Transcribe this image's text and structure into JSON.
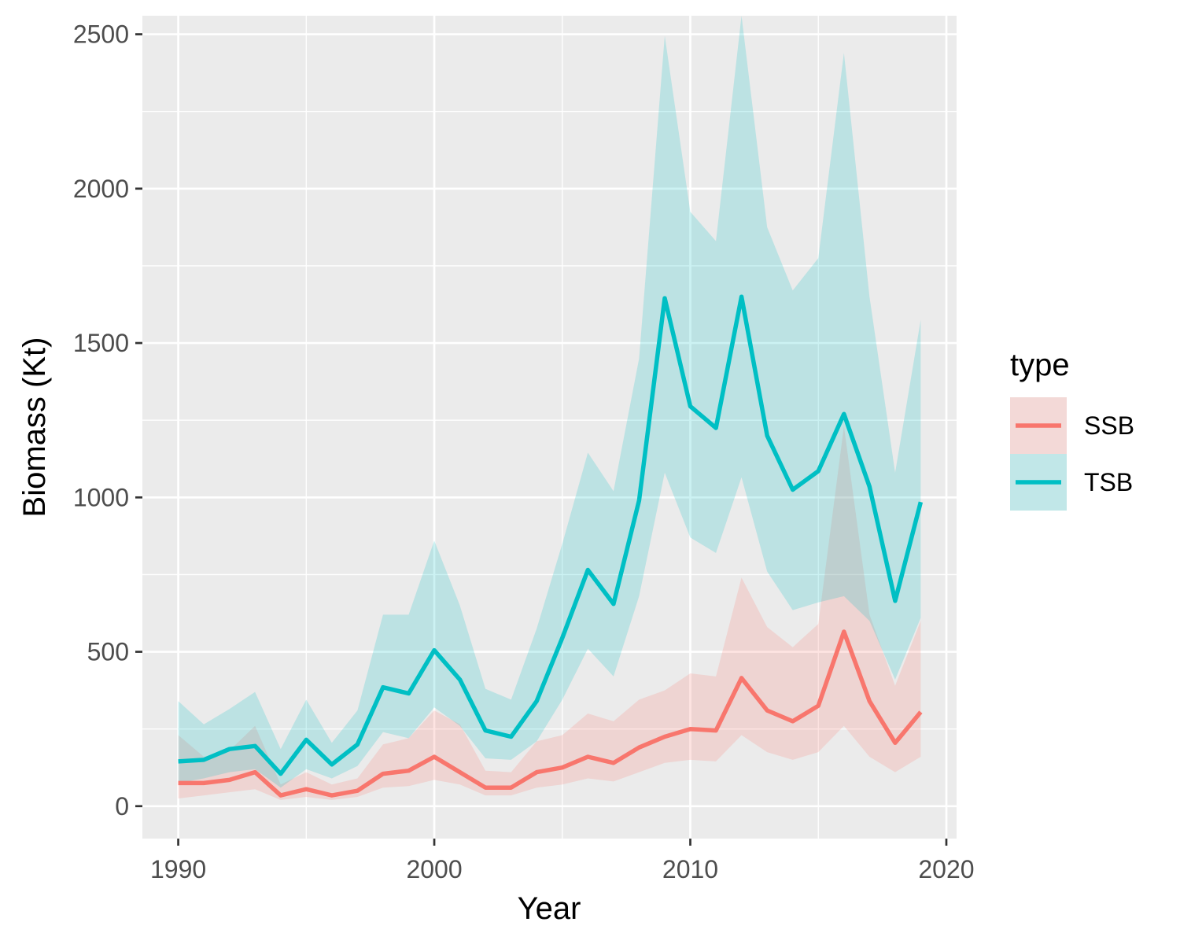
{
  "chart_data": {
    "type": "line",
    "title": "",
    "xlabel": "Year",
    "ylabel": "Biomass (Kt)",
    "xlim": [
      1988.6,
      2020.4
    ],
    "ylim": [
      -105,
      2560
    ],
    "x_ticks": [
      1990,
      2000,
      2010,
      2020
    ],
    "y_ticks": [
      0,
      500,
      1000,
      1500,
      2000,
      2500
    ],
    "grid": true,
    "legend": {
      "title": "type",
      "position": "right"
    },
    "x": [
      1990,
      1991,
      1992,
      1993,
      1994,
      1995,
      1996,
      1997,
      1998,
      1999,
      2000,
      2001,
      2002,
      2003,
      2004,
      2005,
      2006,
      2007,
      2008,
      2009,
      2010,
      2011,
      2012,
      2013,
      2014,
      2015,
      2016,
      2017,
      2018,
      2019
    ],
    "series": [
      {
        "name": "SSB",
        "color": "#F8766D",
        "values": [
          75,
          75,
          85,
          110,
          35,
          55,
          35,
          50,
          105,
          115,
          160,
          110,
          60,
          60,
          110,
          125,
          160,
          140,
          190,
          225,
          250,
          245,
          415,
          310,
          275,
          325,
          565,
          340,
          205,
          305
        ],
        "lower": [
          25,
          35,
          45,
          55,
          20,
          30,
          20,
          30,
          60,
          65,
          85,
          70,
          35,
          35,
          60,
          70,
          90,
          80,
          110,
          140,
          150,
          145,
          230,
          175,
          150,
          175,
          260,
          160,
          110,
          160
        ],
        "upper": [
          230,
          160,
          180,
          260,
          70,
          110,
          70,
          90,
          200,
          220,
          310,
          265,
          115,
          110,
          210,
          230,
          300,
          275,
          345,
          375,
          430,
          420,
          740,
          580,
          515,
          590,
          1230,
          620,
          390,
          600
        ]
      },
      {
        "name": "TSB",
        "color": "#00BFC4",
        "values": [
          145,
          150,
          185,
          195,
          105,
          215,
          135,
          200,
          385,
          365,
          505,
          410,
          245,
          225,
          340,
          545,
          765,
          655,
          990,
          1645,
          1295,
          1225,
          1650,
          1200,
          1025,
          1085,
          1270,
          1035,
          665,
          985
        ],
        "lower": [
          75,
          90,
          110,
          120,
          60,
          120,
          90,
          130,
          240,
          220,
          320,
          260,
          155,
          150,
          210,
          345,
          510,
          420,
          680,
          1080,
          870,
          820,
          1065,
          760,
          635,
          660,
          680,
          600,
          410,
          610
        ],
        "upper": [
          340,
          265,
          315,
          370,
          185,
          345,
          205,
          310,
          620,
          620,
          860,
          650,
          380,
          345,
          575,
          850,
          1145,
          1020,
          1450,
          2495,
          1925,
          1830,
          2560,
          1875,
          1670,
          1775,
          2440,
          1650,
          1080,
          1575
        ]
      }
    ]
  }
}
